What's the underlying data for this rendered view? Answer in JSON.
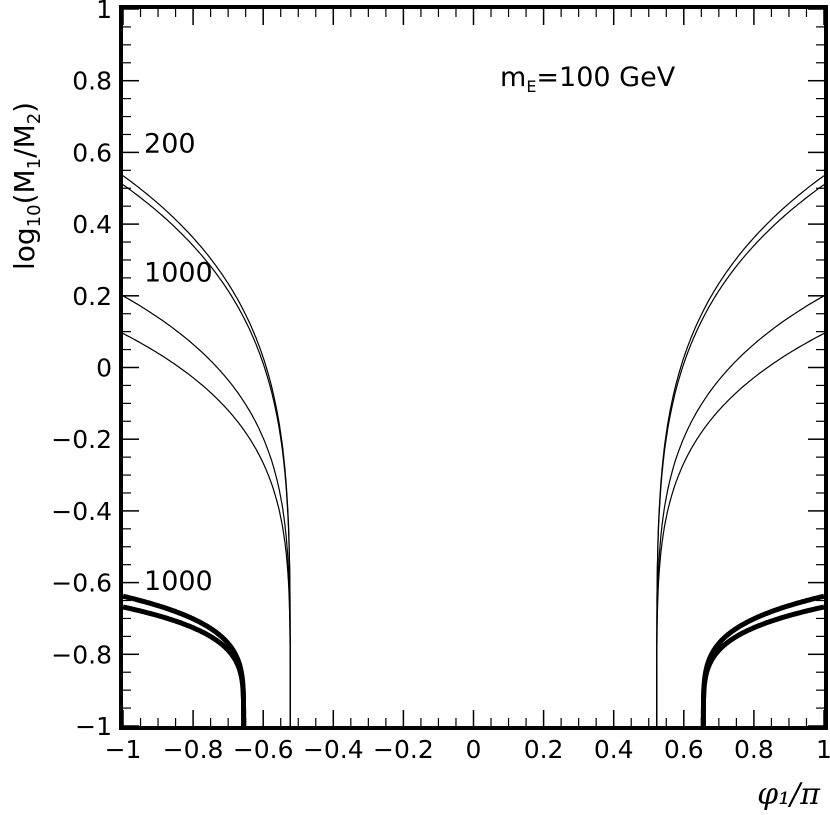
{
  "chart_data": {
    "type": "line",
    "title": "",
    "annotation_text": "m",
    "annotation_sub": "E",
    "annotation_rest": "=100 GeV",
    "xlabel": "φ₁/π",
    "ylabel_prefix": "log",
    "ylabel_sub": "10",
    "ylabel_body": "(M",
    "ylabel_sub1": "1",
    "ylabel_mid": "/M",
    "ylabel_sub2": "2",
    "ylabel_end": ")",
    "xlim": [
      -1,
      1
    ],
    "ylim": [
      -1,
      1
    ],
    "x_ticks": [
      "−1",
      "−0.8",
      "−0.6",
      "−0.4",
      "−0.2",
      "0",
      "0.2",
      "0.4",
      "0.6",
      "0.8",
      "1"
    ],
    "y_ticks": [
      "−1",
      "−0.8",
      "−0.6",
      "−0.4",
      "−0.2",
      "0",
      "0.2",
      "0.4",
      "0.6",
      "0.8",
      "1"
    ],
    "grid": false,
    "curve_labels": [
      {
        "text": "200",
        "x": -0.94,
        "y": 0.6
      },
      {
        "text": "1000",
        "x": -0.94,
        "y": 0.24
      },
      {
        "text": "1000",
        "x": -0.94,
        "y": -0.62
      }
    ],
    "series": [
      {
        "plateau": 0.535,
        "edge": 0.523,
        "width": 1.2
      },
      {
        "plateau": 0.51,
        "edge": 0.523,
        "width": 1.2
      },
      {
        "plateau": 0.2,
        "edge": 0.523,
        "width": 1.2
      },
      {
        "plateau": 0.095,
        "edge": 0.523,
        "width": 1.2
      },
      {
        "plateau": -0.638,
        "edge": 0.656,
        "width": 5
      },
      {
        "plateau": -0.668,
        "edge": 0.656,
        "width": 5
      }
    ]
  }
}
